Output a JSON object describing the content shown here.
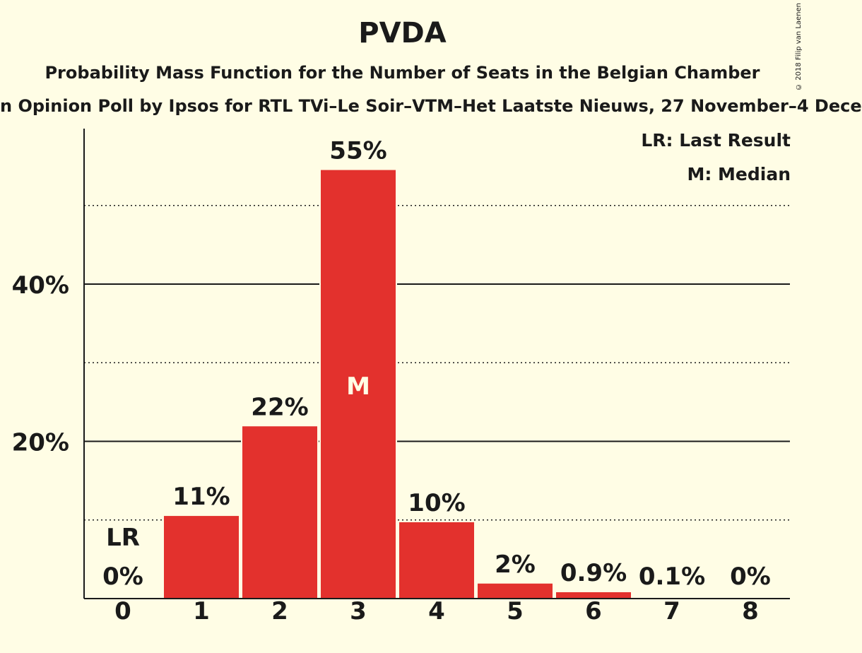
{
  "title": "PVDA",
  "subtitle": "Probability Mass Function for the Number of Seats in the Belgian Chamber",
  "source": "n Opinion Poll by Ipsos for RTL TVi–Le Soir–VTM–Het Laatste Nieuws, 27 November–4 Dece",
  "copyright": "© 2018 Filip van Laenen",
  "legend": {
    "last_result": "LR: Last Result",
    "median": "M: Median"
  },
  "colors": {
    "bar": "#E3312D",
    "background": "#FFFDE5",
    "text": "#1a1a1a"
  },
  "chart_data": {
    "type": "bar",
    "title": "PVDA",
    "categories": [
      "0",
      "1",
      "2",
      "3",
      "4",
      "5",
      "6",
      "7",
      "8"
    ],
    "values": [
      0,
      10.6,
      22,
      54.6,
      9.8,
      2,
      0.9,
      0.1,
      0
    ],
    "data_labels": [
      "0%",
      "11%",
      "22%",
      "55%",
      "10%",
      "2%",
      "0.9%",
      "0.1%",
      "0%"
    ],
    "ylim": [
      0,
      60
    ],
    "yticks": [
      20,
      40
    ],
    "ytick_labels": [
      "20%",
      "40%"
    ],
    "dotted_gridlines": [
      10,
      30,
      50
    ],
    "last_result": {
      "category": "0",
      "label": "LR"
    },
    "median": {
      "category": "3",
      "label": "M"
    },
    "xlabel": "",
    "ylabel": "",
    "grid": true
  }
}
